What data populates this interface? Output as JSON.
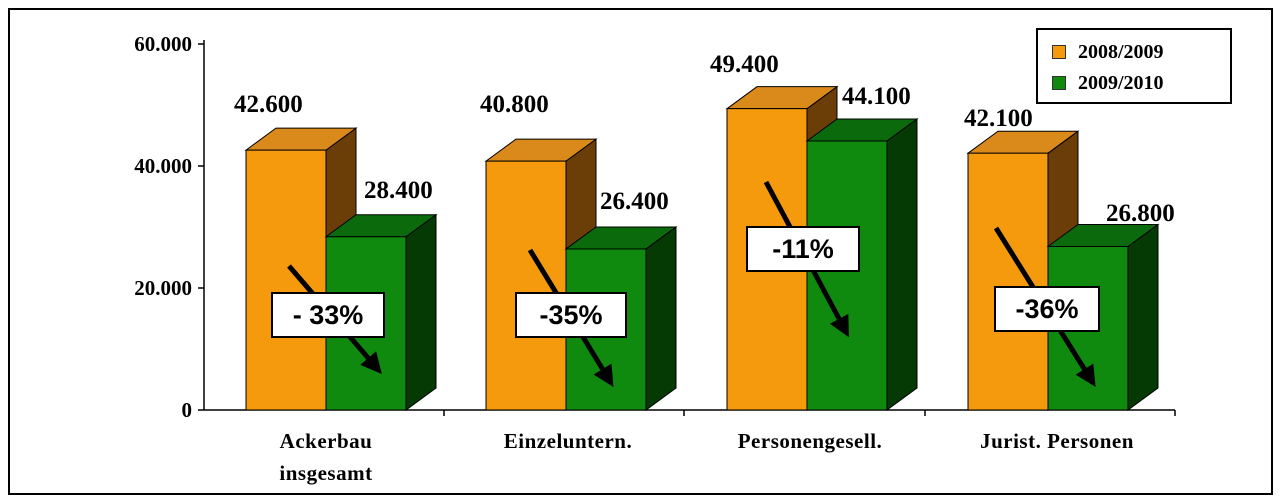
{
  "chart_data": {
    "type": "bar",
    "categories": [
      [
        "Ackerbau",
        "insgesamt"
      ],
      [
        "Einzeluntern."
      ],
      [
        "Personengesell."
      ],
      [
        "Jurist. Personen"
      ]
    ],
    "series": [
      {
        "name": "2008/2009",
        "values": [
          42600,
          40800,
          49400,
          42100
        ]
      },
      {
        "name": "2009/2010",
        "values": [
          28400,
          26400,
          44100,
          26800
        ]
      }
    ],
    "value_labels": [
      [
        "42.600",
        "40.800",
        "49.400",
        "42.100"
      ],
      [
        "28.400",
        "26.400",
        "44.100",
        "26.800"
      ]
    ],
    "change_labels": [
      "- 33%",
      "-35%",
      "-11%",
      "-36%"
    ],
    "y_ticks": [
      {
        "value": 0,
        "label": "0"
      },
      {
        "value": 20000,
        "label": "20.000"
      },
      {
        "value": 40000,
        "label": "40.000"
      },
      {
        "value": 60000,
        "label": "60.000"
      }
    ],
    "ylim": [
      0,
      60000
    ],
    "legend_position": "top-right",
    "grid": false
  },
  "colors": {
    "series_2008": {
      "front": "#F59A0D",
      "top": "#D98A1B",
      "side": "#6B3E08"
    },
    "series_2009": {
      "front": "#0F8A0F",
      "top": "#0B6A0B",
      "side": "#053A05"
    },
    "arrow": "#000000"
  }
}
